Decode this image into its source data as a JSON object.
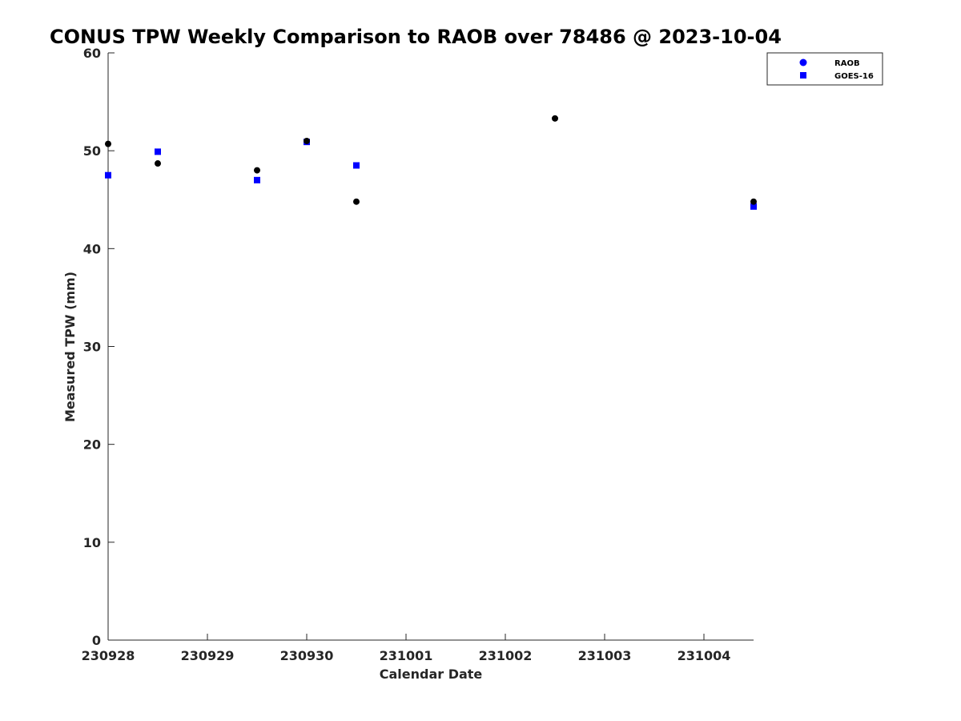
{
  "chart_data": {
    "type": "scatter",
    "title": "CONUS TPW Weekly Comparison to RAOB over 78486 @ 2023-10-04",
    "xlabel": "Calendar Date",
    "ylabel": "Measured TPW (mm)",
    "x_range_days": [
      0,
      6.5
    ],
    "ylim": [
      0,
      60
    ],
    "x_ticks": [
      {
        "day": 0,
        "label": "230928"
      },
      {
        "day": 1,
        "label": "230929"
      },
      {
        "day": 2,
        "label": "230930"
      },
      {
        "day": 3,
        "label": "231001"
      },
      {
        "day": 4,
        "label": "231002"
      },
      {
        "day": 5,
        "label": "231003"
      },
      {
        "day": 6,
        "label": "231004"
      }
    ],
    "y_ticks": [
      0,
      10,
      20,
      30,
      40,
      50,
      60
    ],
    "grid": false,
    "legend_position": "top-right",
    "legend": [
      {
        "name": "RAOB",
        "marker": "circle",
        "color": "#0000ff"
      },
      {
        "name": "GOES-16",
        "marker": "square",
        "color": "#0000ff"
      }
    ],
    "series": [
      {
        "name": "RAOB",
        "marker": "circle",
        "color": "#000000",
        "points": [
          {
            "x": 0.0,
            "y": 50.7
          },
          {
            "x": 0.5,
            "y": 48.7
          },
          {
            "x": 1.5,
            "y": 48.0
          },
          {
            "x": 2.0,
            "y": 51.0
          },
          {
            "x": 2.5,
            "y": 44.8
          },
          {
            "x": 4.5,
            "y": 53.3
          },
          {
            "x": 6.5,
            "y": 44.8
          }
        ]
      },
      {
        "name": "GOES-16",
        "marker": "square",
        "color": "#0000ff",
        "points": [
          {
            "x": 0.0,
            "y": 47.5
          },
          {
            "x": 0.5,
            "y": 49.9
          },
          {
            "x": 1.5,
            "y": 47.0
          },
          {
            "x": 2.0,
            "y": 50.9
          },
          {
            "x": 2.5,
            "y": 48.5
          },
          {
            "x": 6.5,
            "y": 44.3
          }
        ]
      }
    ]
  }
}
